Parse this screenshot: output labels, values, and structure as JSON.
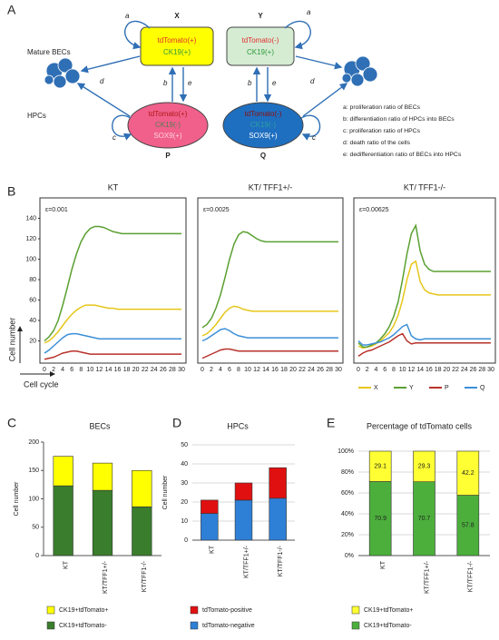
{
  "panels": [
    "A",
    "B",
    "C",
    "D",
    "E"
  ],
  "diagram": {
    "rows": [
      "Mature BECs",
      "HPCs"
    ],
    "nodes": [
      {
        "name": "X",
        "lines": [
          "tdTomato(+)",
          "CK19(+)"
        ]
      },
      {
        "name": "Y",
        "lines": [
          "tdTomato(-)",
          "CK19(+)"
        ]
      },
      {
        "name": "P",
        "lines": [
          "tdTomato(+)",
          "CK19(-)",
          "SOX9(+)"
        ]
      },
      {
        "name": "Q",
        "lines": [
          "tdTomato(-)",
          "CK19(-)",
          "SOX9(+)"
        ]
      }
    ],
    "edges": [
      "a",
      "a",
      "b",
      "e",
      "b",
      "e",
      "c",
      "c",
      "d",
      "d"
    ],
    "legend": [
      "a: proliferation ratio of BECs",
      "b: differentiation ratio of HPCs into BECs",
      "c: proliferation ratio of HPCs",
      "d: death ratio of the cells",
      "e: dedifferentiation ratio of BECs into HPCs"
    ]
  },
  "chart_data": [
    {
      "type": "line",
      "ylabel": "Cell number",
      "xlabel": "Cell cycle",
      "x": [
        0,
        1,
        2,
        3,
        4,
        5,
        6,
        7,
        8,
        9,
        10,
        11,
        12,
        13,
        14,
        15,
        16,
        17,
        18,
        19,
        20,
        21,
        22,
        23,
        24,
        25,
        26,
        27,
        28,
        29,
        30
      ],
      "xlim": [
        0,
        30
      ],
      "xticks": [
        0,
        2,
        4,
        6,
        8,
        10,
        12,
        14,
        16,
        18,
        20,
        22,
        24,
        26,
        28,
        30
      ],
      "ylim": [
        0,
        160
      ],
      "yticks": [
        20,
        40,
        60,
        80,
        100,
        120,
        140
      ],
      "series": [
        {
          "name": "X",
          "color": "#e6c619"
        },
        {
          "name": "Y",
          "color": "#5aa031"
        },
        {
          "name": "P",
          "color": "#b8322a"
        },
        {
          "name": "Q",
          "color": "#3c8fd8"
        }
      ],
      "charts": [
        {
          "title": "KT",
          "annotation": "ε=0.001",
          "series": [
            {
              "values": [
                18,
                20,
                24,
                29,
                35,
                41,
                46,
                50,
                53,
                55,
                55,
                55,
                54,
                53,
                52,
                52,
                51,
                51,
                51,
                51,
                51,
                51,
                51,
                51,
                51,
                51,
                51,
                51,
                51,
                51,
                51
              ]
            },
            {
              "values": [
                20,
                24,
                30,
                40,
                55,
                72,
                90,
                105,
                117,
                125,
                130,
                132,
                132,
                131,
                129,
                127,
                126,
                125,
                125,
                125,
                125,
                125,
                125,
                125,
                125,
                125,
                125,
                125,
                125,
                125,
                125
              ]
            },
            {
              "values": [
                2,
                3,
                4,
                6,
                8,
                9,
                10,
                10,
                9,
                8,
                7,
                7,
                7,
                7,
                7,
                7,
                7,
                7,
                7,
                7,
                7,
                7,
                7,
                7,
                7,
                7,
                7,
                7,
                7,
                7,
                7
              ]
            },
            {
              "values": [
                8,
                11,
                15,
                19,
                23,
                26,
                27,
                27,
                26,
                25,
                24,
                23,
                22,
                22,
                22,
                22,
                22,
                22,
                22,
                22,
                22,
                22,
                22,
                22,
                22,
                22,
                22,
                22,
                22,
                22,
                22
              ]
            }
          ]
        },
        {
          "title": "KT/ TFF1+/-",
          "annotation": "ε=0.0025",
          "series": [
            {
              "values": [
                25,
                27,
                31,
                36,
                42,
                48,
                52,
                54,
                53,
                51,
                50,
                49,
                49,
                49,
                49,
                49,
                49,
                49,
                49,
                49,
                49,
                49,
                49,
                49,
                49,
                49,
                49,
                49,
                49,
                49,
                49
              ]
            },
            {
              "values": [
                33,
                36,
                42,
                52,
                65,
                82,
                100,
                115,
                124,
                127,
                126,
                123,
                120,
                118,
                117,
                117,
                117,
                117,
                117,
                117,
                117,
                117,
                117,
                117,
                117,
                117,
                117,
                117,
                117,
                117,
                117
              ]
            },
            {
              "values": [
                3,
                5,
                7,
                9,
                11,
                12,
                12,
                11,
                10,
                10,
                10,
                10,
                10,
                10,
                10,
                10,
                10,
                10,
                10,
                10,
                10,
                10,
                10,
                10,
                10,
                10,
                10,
                10,
                10,
                10,
                10
              ]
            },
            {
              "values": [
                20,
                22,
                25,
                28,
                31,
                32,
                30,
                27,
                25,
                24,
                23,
                23,
                23,
                23,
                23,
                23,
                23,
                23,
                23,
                23,
                23,
                23,
                23,
                23,
                23,
                23,
                23,
                23,
                23,
                23,
                23
              ]
            }
          ]
        },
        {
          "title": "KT/ TFF1-/-",
          "annotation": "ε=0.00625",
          "series": [
            {
              "values": [
                15,
                13,
                14,
                15,
                17,
                20,
                24,
                28,
                35,
                45,
                60,
                80,
                95,
                98,
                78,
                70,
                67,
                66,
                65,
                65,
                65,
                65,
                65,
                65,
                65,
                65,
                65,
                65,
                65,
                65,
                65
              ]
            },
            {
              "values": [
                18,
                14,
                14,
                16,
                18,
                22,
                27,
                34,
                44,
                58,
                80,
                105,
                125,
                133,
                108,
                95,
                90,
                88,
                88,
                88,
                88,
                88,
                88,
                88,
                88,
                88,
                88,
                88,
                88,
                88,
                88
              ]
            },
            {
              "values": [
                5,
                8,
                10,
                11,
                13,
                15,
                17,
                19,
                22,
                25,
                27,
                20,
                17,
                18,
                18,
                18,
                18,
                18,
                18,
                18,
                18,
                18,
                18,
                18,
                18,
                18,
                18,
                18,
                18,
                18,
                18
              ]
            },
            {
              "values": [
                20,
                16,
                16,
                17,
                18,
                19,
                21,
                23,
                26,
                30,
                34,
                36,
                25,
                22,
                21,
                22,
                22,
                22,
                22,
                22,
                22,
                22,
                22,
                22,
                22,
                22,
                22,
                22,
                22,
                22,
                22
              ]
            }
          ]
        }
      ]
    },
    {
      "type": "bar",
      "title": "BECs",
      "ylabel": "Cell number",
      "categories": [
        "KT",
        "KT/TFF1+/-",
        "KT/TFF1-/-"
      ],
      "ylim": [
        0,
        200
      ],
      "yticks": [
        0,
        50,
        100,
        150,
        200
      ],
      "grid": false,
      "data_labels": false,
      "series": [
        {
          "name": "CK19+tdTomato-",
          "color": "#3a7d2c",
          "values": [
            123,
            115,
            86
          ]
        },
        {
          "name": "CK19+tdTomato+",
          "color": "#ffff00",
          "values": [
            52,
            48,
            64
          ]
        }
      ]
    },
    {
      "type": "bar",
      "title": "HPCs",
      "ylabel": "Cell number",
      "categories": [
        "KT",
        "KT/TFF1+/-",
        "KT/TFF1-/-"
      ],
      "ylim": [
        0,
        50
      ],
      "yticks": [
        0,
        10,
        20,
        30,
        40,
        50
      ],
      "grid": true,
      "data_labels": false,
      "series": [
        {
          "name": "tdTomato-negative",
          "color": "#2e7fd6",
          "values": [
            14,
            21,
            22
          ]
        },
        {
          "name": "tdTomato-positive",
          "color": "#e01010",
          "values": [
            7,
            9,
            16
          ]
        }
      ]
    },
    {
      "type": "bar",
      "title": "Percentage of tdTomato cells",
      "categories": [
        "KT",
        "KT/TFF1+/-",
        "KT/TFF1-/-"
      ],
      "ylim": [
        0,
        100
      ],
      "yticks": [
        {
          "value": 0,
          "label": "0%"
        },
        {
          "value": 20,
          "label": "20%"
        },
        {
          "value": 40,
          "label": "40%"
        },
        {
          "value": 60,
          "label": "60%"
        },
        {
          "value": 80,
          "label": "80%"
        },
        {
          "value": 100,
          "label": "100%"
        }
      ],
      "grid": true,
      "data_labels": true,
      "series": [
        {
          "name": "CK19+tdTomato-",
          "color": "#4caf3c",
          "values": [
            70.9,
            70.7,
            57.8
          ]
        },
        {
          "name": "CK19+tdTomato+",
          "color": "#ffff33",
          "values": [
            29.1,
            29.3,
            42.2
          ]
        }
      ]
    }
  ]
}
